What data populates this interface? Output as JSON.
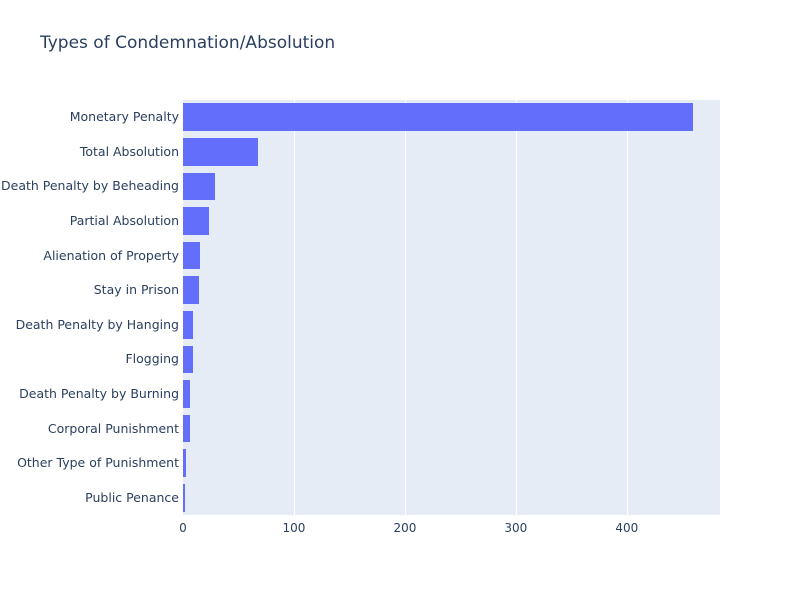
{
  "chart_data": {
    "type": "bar",
    "orientation": "horizontal",
    "title": "Types of Condemnation/Absolution",
    "categories": [
      "Monetary Penalty",
      "Total Absolution",
      "Death Penalty by Beheading",
      "Partial Absolution",
      "Alienation of Property",
      "Stay in Prison",
      "Death Penalty by Hanging",
      "Flogging",
      "Death Penalty by Burning",
      "Corporal Punishment",
      "Other Type of Punishment",
      "Public Penance"
    ],
    "values": [
      460,
      68,
      29,
      23,
      15,
      14,
      9,
      9,
      6,
      6,
      3,
      2
    ],
    "xlabel": "",
    "ylabel": "",
    "xlim": [
      0,
      484
    ],
    "x_ticks": [
      0,
      100,
      200,
      300,
      400
    ],
    "grid": true,
    "legend": false,
    "colors": {
      "bar": "#636efa",
      "plot_background": "#e5ecf6",
      "gridline": "#ffffff",
      "text": "#2a3f5f",
      "figure_background": "#ffffff"
    }
  }
}
